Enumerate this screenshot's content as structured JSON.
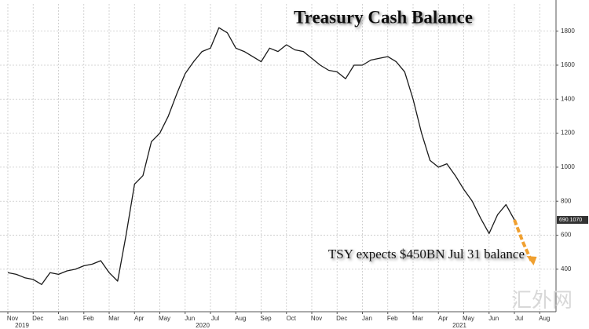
{
  "chart_data": {
    "type": "line",
    "title": "Treasury Cash Balance",
    "annotation": "TSY expects $450BN Jul 31 balance",
    "watermark": "汇外网",
    "categories": [
      "Nov",
      null,
      null,
      "Dec",
      null,
      null,
      "Jan",
      null,
      null,
      "Feb",
      null,
      null,
      "Mar",
      null,
      null,
      "Apr",
      null,
      null,
      "May",
      null,
      null,
      "Jun",
      null,
      null,
      "Jul",
      null,
      null,
      "Aug",
      null,
      null,
      "Sep",
      null,
      null,
      "Oct",
      null,
      null,
      "Nov",
      null,
      null,
      "Dec",
      null,
      null,
      "Jan",
      null,
      null,
      "Feb",
      null,
      null,
      "Mar",
      null,
      null,
      "Apr",
      null,
      null,
      "May",
      null,
      null,
      "Jun",
      null,
      null,
      "Jul",
      null,
      null,
      "Aug",
      null
    ],
    "year_labels": [
      "2019",
      "2020",
      "2021"
    ],
    "series": [
      {
        "color": "#1a1a1a",
        "values": [
          380,
          370,
          350,
          340,
          310,
          380,
          370,
          390,
          400,
          420,
          430,
          450,
          380,
          330,
          600,
          900,
          950,
          1150,
          1200,
          1300,
          1430,
          1550,
          1620,
          1680,
          1700,
          1820,
          1790,
          1700,
          1680,
          1650,
          1620,
          1700,
          1680,
          1720,
          1690,
          1680,
          1640,
          1600,
          1570,
          1560,
          1520,
          1600,
          1600,
          1630,
          1640,
          1650,
          1620,
          1560,
          1400,
          1200,
          1040,
          1000,
          1020,
          950,
          870,
          800,
          700,
          610,
          720,
          780,
          690.107,
          null,
          null,
          null,
          null
        ],
        "value_labels": [
          null,
          null,
          null,
          null,
          null,
          null,
          null,
          null,
          null,
          null,
          null,
          null,
          null,
          null,
          null,
          null,
          null,
          null,
          null,
          null,
          null,
          null,
          null,
          null,
          null,
          null,
          null,
          null,
          null,
          null,
          null,
          null,
          null,
          null,
          null,
          null,
          null,
          null,
          null,
          null,
          null,
          null,
          null,
          null,
          null,
          null,
          null,
          null,
          null,
          null,
          null,
          null,
          null,
          null,
          null,
          null,
          null,
          null,
          null,
          null,
          "690.1070",
          null,
          null,
          null,
          null
        ]
      }
    ],
    "projection": {
      "color": "#f0a030",
      "values": [
        null,
        null,
        null,
        null,
        null,
        null,
        null,
        null,
        null,
        null,
        null,
        null,
        null,
        null,
        null,
        null,
        null,
        null,
        null,
        null,
        null,
        null,
        null,
        null,
        null,
        null,
        null,
        null,
        null,
        null,
        null,
        null,
        null,
        null,
        null,
        null,
        null,
        null,
        null,
        null,
        null,
        null,
        null,
        null,
        null,
        null,
        null,
        null,
        null,
        null,
        null,
        null,
        null,
        null,
        null,
        null,
        null,
        null,
        null,
        null,
        690.107,
        560,
        450,
        null,
        null
      ]
    },
    "ylim": [
      150,
      1960
    ],
    "yticks": [
      400,
      600,
      800,
      1000,
      1200,
      1400,
      1600,
      1800
    ],
    "grid": true
  }
}
